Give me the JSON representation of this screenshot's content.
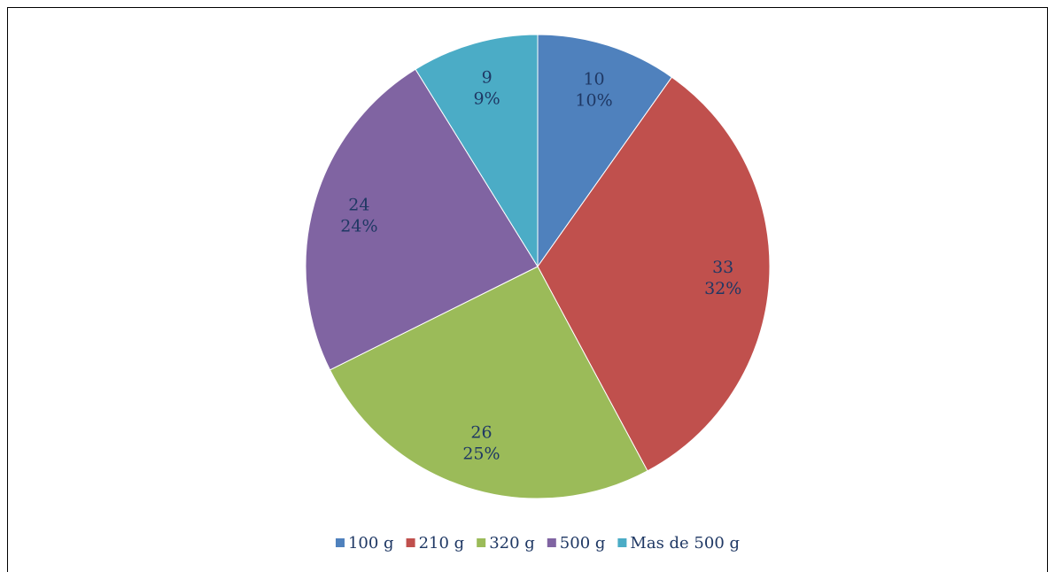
{
  "chart_data": {
    "type": "pie",
    "categories": [
      "100 g",
      "210 g",
      "320 g",
      "500 g",
      "Mas de 500 g"
    ],
    "values": [
      10,
      33,
      26,
      24,
      9
    ],
    "percent_labels": [
      "10%",
      "32%",
      "25%",
      "24%",
      "9%"
    ],
    "colors": [
      "#4f81bd",
      "#c0504d",
      "#9bbb59",
      "#8064a2",
      "#4bacc6"
    ],
    "legend": "bottom"
  }
}
